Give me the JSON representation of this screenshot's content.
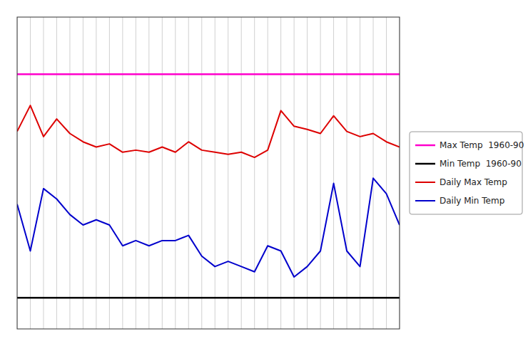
{
  "chart_data": {
    "type": "line",
    "x": [
      1,
      2,
      3,
      4,
      5,
      6,
      7,
      8,
      9,
      10,
      11,
      12,
      13,
      14,
      15,
      16,
      17,
      18,
      19,
      20,
      21,
      22,
      23,
      24,
      25,
      26,
      27,
      28,
      29,
      30
    ],
    "series": [
      {
        "name": "Max Temp  1960-90",
        "type": "hline",
        "color": "#ff00cc",
        "value": 24.5
      },
      {
        "name": "Min Temp  1960-90",
        "type": "hline",
        "color": "#000000",
        "value": 3.0
      },
      {
        "name": "Daily Max Temp",
        "type": "line",
        "color": "#dd0000",
        "values": [
          19.0,
          21.5,
          18.5,
          20.2,
          18.8,
          18.0,
          17.5,
          17.8,
          17.0,
          17.2,
          17.0,
          17.5,
          17.0,
          18.0,
          17.2,
          17.0,
          16.8,
          17.0,
          16.5,
          17.2,
          21.0,
          19.5,
          19.2,
          18.8,
          20.5,
          19.0,
          18.5,
          18.8,
          18.0,
          17.5
        ]
      },
      {
        "name": "Daily Min Temp",
        "type": "line",
        "color": "#0000cc",
        "values": [
          12.0,
          7.5,
          13.5,
          12.5,
          11.0,
          10.0,
          10.5,
          10.0,
          8.0,
          8.5,
          8.0,
          8.5,
          8.5,
          9.0,
          7.0,
          6.0,
          6.5,
          6.0,
          5.5,
          8.0,
          7.5,
          5.0,
          6.0,
          7.5,
          14.0,
          7.5,
          6.0,
          14.5,
          13.0,
          10.0
        ]
      }
    ],
    "xlim": [
      1,
      30
    ],
    "xticks": [
      1,
      2,
      3,
      4,
      5,
      6,
      7,
      8,
      9,
      10,
      11,
      12,
      13,
      14,
      15,
      16,
      17,
      18,
      19,
      20,
      21,
      22,
      23,
      24,
      25,
      26,
      27,
      28,
      29,
      30
    ],
    "ylim": [
      0,
      30
    ],
    "grid": true,
    "tick_labels": false,
    "legend": "right"
  }
}
